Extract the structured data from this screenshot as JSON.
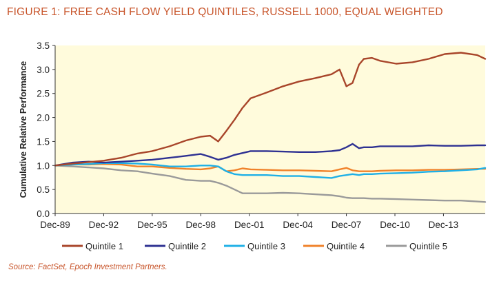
{
  "figure_title": "FIGURE 1: FREE CASH FLOW YIELD QUINTILES, RUSSELL 1000, EQUAL WEIGHTED",
  "source": "Source: FactSet, Epoch Investment Partners.",
  "colors": {
    "title": "#c8552b",
    "plot_background": "#fffbdc",
    "quintile_1": "#a8452a",
    "quintile_2": "#2e3192",
    "quintile_3": "#1fb0e6",
    "quintile_4": "#f0822a",
    "quintile_5": "#9a9a9a"
  },
  "chart_data": {
    "type": "line",
    "title": "",
    "xlabel": "",
    "ylabel": "Cumulative Relative Performance",
    "xlim": [
      1989.92,
      2016.5
    ],
    "ylim": [
      0,
      3.5
    ],
    "x_ticks": [
      {
        "label": "Dec-89",
        "value": 1989.92
      },
      {
        "label": "Dec-92",
        "value": 1992.92
      },
      {
        "label": "Dec-95",
        "value": 1995.92
      },
      {
        "label": "Dec-98",
        "value": 1998.92
      },
      {
        "label": "Dec-01",
        "value": 2001.92
      },
      {
        "label": "Dec-04",
        "value": 2004.92
      },
      {
        "label": "Dec-07",
        "value": 2007.92
      },
      {
        "label": "Dec-10",
        "value": 2010.92
      },
      {
        "label": "Dec-13",
        "value": 2013.92
      }
    ],
    "y_ticks": [
      "0.0",
      "0.5",
      "1.0",
      "1.5",
      "2.0",
      "2.5",
      "3.0",
      "3.5"
    ],
    "y_tick_values": [
      0,
      0.5,
      1.0,
      1.5,
      2.0,
      2.5,
      3.0,
      3.5
    ],
    "grid": false,
    "legend_position": "bottom",
    "x": [
      1989.92,
      1991.0,
      1992.0,
      1992.92,
      1994.0,
      1995.0,
      1995.92,
      1997.0,
      1998.0,
      1998.92,
      1999.5,
      2000.0,
      2000.5,
      2001.0,
      2001.5,
      2002.0,
      2003.0,
      2004.0,
      2005.0,
      2006.0,
      2007.0,
      2007.5,
      2007.92,
      2008.3,
      2008.7,
      2009.0,
      2009.5,
      2010.0,
      2011.0,
      2012.0,
      2013.0,
      2014.0,
      2015.0,
      2016.0,
      2016.5
    ],
    "series": [
      {
        "name": "Quintile 1",
        "values": [
          1.0,
          1.04,
          1.07,
          1.1,
          1.16,
          1.25,
          1.3,
          1.4,
          1.52,
          1.6,
          1.62,
          1.5,
          1.72,
          1.95,
          2.2,
          2.4,
          2.52,
          2.65,
          2.75,
          2.82,
          2.9,
          3.0,
          2.65,
          2.72,
          3.1,
          3.22,
          3.24,
          3.18,
          3.12,
          3.15,
          3.22,
          3.32,
          3.35,
          3.3,
          3.22
        ]
      },
      {
        "name": "Quintile 2",
        "values": [
          1.0,
          1.06,
          1.08,
          1.06,
          1.08,
          1.1,
          1.12,
          1.16,
          1.2,
          1.24,
          1.18,
          1.12,
          1.16,
          1.22,
          1.26,
          1.3,
          1.3,
          1.29,
          1.28,
          1.28,
          1.3,
          1.32,
          1.38,
          1.45,
          1.36,
          1.38,
          1.38,
          1.4,
          1.4,
          1.4,
          1.42,
          1.41,
          1.41,
          1.42,
          1.42
        ]
      },
      {
        "name": "Quintile 3",
        "values": [
          1.0,
          1.02,
          1.03,
          1.05,
          1.05,
          1.04,
          1.02,
          0.98,
          0.98,
          1.0,
          1.0,
          0.98,
          0.88,
          0.82,
          0.8,
          0.8,
          0.8,
          0.78,
          0.78,
          0.76,
          0.74,
          0.78,
          0.8,
          0.82,
          0.8,
          0.82,
          0.82,
          0.83,
          0.84,
          0.85,
          0.87,
          0.88,
          0.9,
          0.92,
          0.95
        ]
      },
      {
        "name": "Quintile 4",
        "values": [
          1.0,
          1.02,
          1.02,
          1.03,
          1.02,
          0.98,
          0.98,
          0.95,
          0.93,
          0.92,
          0.94,
          0.98,
          0.88,
          0.9,
          0.94,
          0.92,
          0.91,
          0.9,
          0.9,
          0.89,
          0.88,
          0.92,
          0.95,
          0.9,
          0.88,
          0.88,
          0.88,
          0.89,
          0.9,
          0.9,
          0.91,
          0.91,
          0.92,
          0.93,
          0.93
        ]
      },
      {
        "name": "Quintile 5",
        "values": [
          1.0,
          0.98,
          0.96,
          0.94,
          0.9,
          0.88,
          0.83,
          0.78,
          0.7,
          0.68,
          0.68,
          0.64,
          0.58,
          0.5,
          0.42,
          0.42,
          0.42,
          0.43,
          0.42,
          0.4,
          0.38,
          0.36,
          0.33,
          0.32,
          0.32,
          0.32,
          0.31,
          0.31,
          0.3,
          0.29,
          0.28,
          0.27,
          0.27,
          0.25,
          0.24
        ]
      }
    ]
  }
}
